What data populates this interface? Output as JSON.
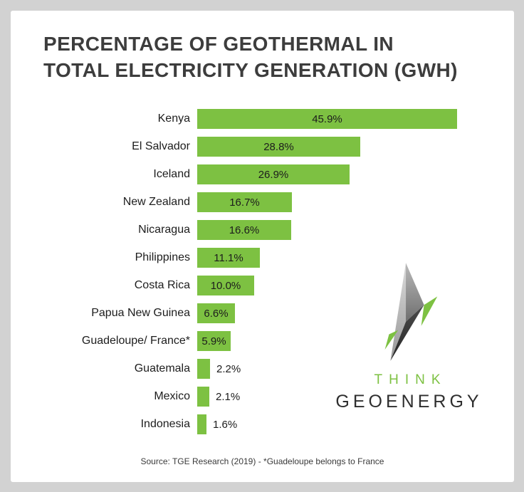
{
  "header": {
    "line1": "PERCENTAGE OF GEOTHERMAL IN",
    "line2": "TOTAL ELECTRICITY GENERATION (GWH)"
  },
  "chart_data": {
    "type": "bar",
    "orientation": "horizontal",
    "title": "PERCENTAGE OF GEOTHERMAL IN TOTAL ELECTRICITY GENERATION (GWH)",
    "categories": [
      "Kenya",
      "El Salvador",
      "Iceland",
      "New Zealand",
      "Nicaragua",
      "Philippines",
      "Costa Rica",
      "Papua New Guinea",
      "Guadeloupe/ France*",
      "Guatemala",
      "Mexico",
      "Indonesia"
    ],
    "values": [
      45.9,
      28.8,
      26.9,
      16.7,
      16.6,
      11.1,
      10.0,
      6.6,
      5.9,
      2.2,
      2.1,
      1.6
    ],
    "value_labels": [
      "45.9%",
      "28.8%",
      "26.9%",
      "16.7%",
      "16.6%",
      "11.1%",
      "10.0%",
      "6.6%",
      "5.9%",
      "2.2%",
      "2.1%",
      "1.6%"
    ],
    "xlim": [
      0,
      46
    ],
    "bar_color": "#7dc142",
    "grid": false,
    "legend": false,
    "source": "Source: TGE Research (2019) - *Guadeloupe belongs to France"
  },
  "branding": {
    "think": "THINK",
    "geoenergy": "GEOENERGY",
    "accent_color": "#7dc142",
    "dark_color": "#2e2e2e"
  },
  "colors": {
    "background": "#d2d2d2",
    "card": "#ffffff",
    "title_text": "#3d3d3d"
  }
}
